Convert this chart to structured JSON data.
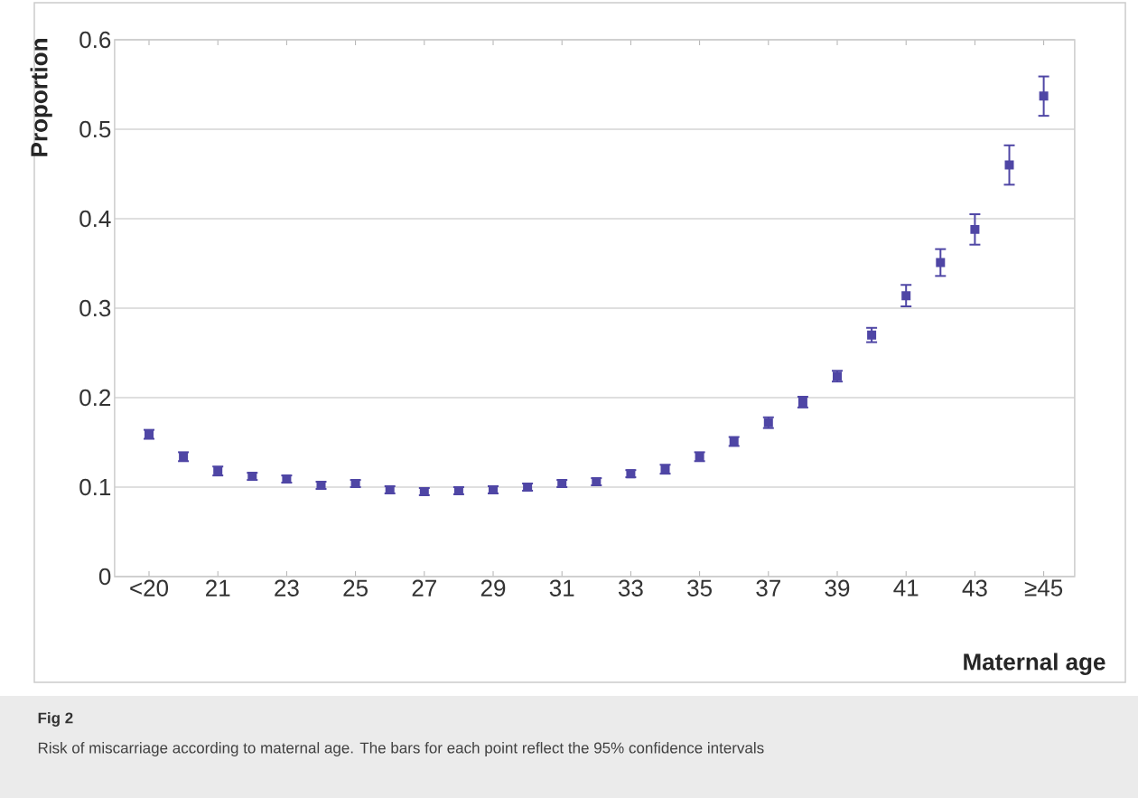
{
  "chart_data": {
    "type": "scatter",
    "title": "Fig 2",
    "xlabel": "Maternal age",
    "ylabel": "Proportion",
    "annotations": [
      "Risk of miscarriage according to maternal age. The bars for each point reflect the 95% confidence intervals"
    ],
    "categories": [
      "<20",
      null,
      "21",
      null,
      "23",
      null,
      "25",
      null,
      "27",
      null,
      "29",
      null,
      "31",
      null,
      "33",
      null,
      "35",
      null,
      "37",
      null,
      "39",
      null,
      "41",
      null,
      "43",
      null,
      "≥45"
    ],
    "values": [
      0.159,
      0.134,
      0.118,
      0.112,
      0.109,
      0.102,
      0.104,
      0.097,
      0.095,
      0.096,
      0.097,
      0.1,
      0.104,
      0.106,
      0.115,
      0.12,
      0.134,
      0.151,
      0.172,
      0.195,
      0.224,
      0.27,
      0.314,
      0.351,
      0.388,
      0.46,
      0.537
    ],
    "errors": [
      0.005,
      0.005,
      0.005,
      0.004,
      0.004,
      0.004,
      0.004,
      0.004,
      0.004,
      0.004,
      0.004,
      0.004,
      0.004,
      0.004,
      0.004,
      0.005,
      0.005,
      0.005,
      0.006,
      0.006,
      0.006,
      0.008,
      0.012,
      0.015,
      0.017,
      0.022,
      0.022
    ],
    "color": "#4f46a5",
    "marker": "square",
    "grid": "y",
    "ylim": [
      0,
      0.6
    ],
    "yticks": [
      0,
      0.1,
      0.2,
      0.3,
      0.4,
      0.5,
      0.6
    ]
  }
}
